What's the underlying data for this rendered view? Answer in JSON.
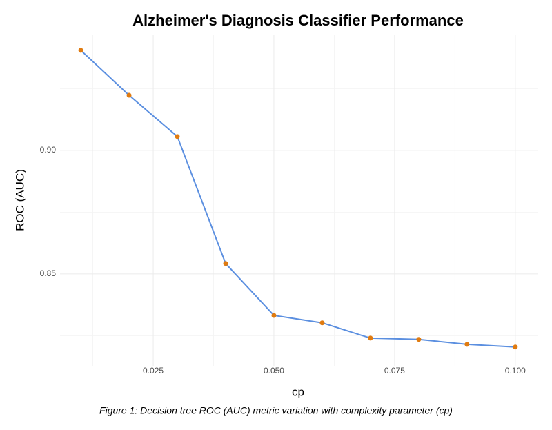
{
  "chart_data": {
    "type": "line",
    "title": "Alzheimer's Diagnosis Classifier Performance",
    "x_label": "cp",
    "y_label": "ROC (AUC)",
    "caption": "Figure 1: Decision tree ROC (AUC) metric variation with complexity parameter (cp)",
    "x": [
      0.01,
      0.02,
      0.03,
      0.04,
      0.05,
      0.06,
      0.07,
      0.08,
      0.09,
      0.1
    ],
    "series": [
      {
        "name": "ROC",
        "color": "#5b8fe0",
        "marker_color": "#e07b10",
        "values": [
          0.9405,
          0.9223,
          0.9056,
          0.8542,
          0.8332,
          0.8302,
          0.824,
          0.8235,
          0.8215,
          0.8204
        ]
      }
    ],
    "xlim": [
      0.0057,
      0.1046
    ],
    "ylim": [
      0.8128,
      0.9469
    ],
    "xticks": [
      {
        "value": 0.025,
        "label": "0.025"
      },
      {
        "value": 0.05,
        "label": "0.050"
      },
      {
        "value": 0.075,
        "label": "0.075"
      },
      {
        "value": 0.1,
        "label": "0.100"
      }
    ],
    "yticks": [
      {
        "value": 0.85,
        "label": "0.85"
      },
      {
        "value": 0.9,
        "label": "0.90"
      }
    ],
    "minor_xticks": [
      0.0125,
      0.0375,
      0.0625,
      0.0875
    ],
    "minor_yticks": [
      0.825,
      0.875,
      0.925
    ],
    "grid": true
  }
}
